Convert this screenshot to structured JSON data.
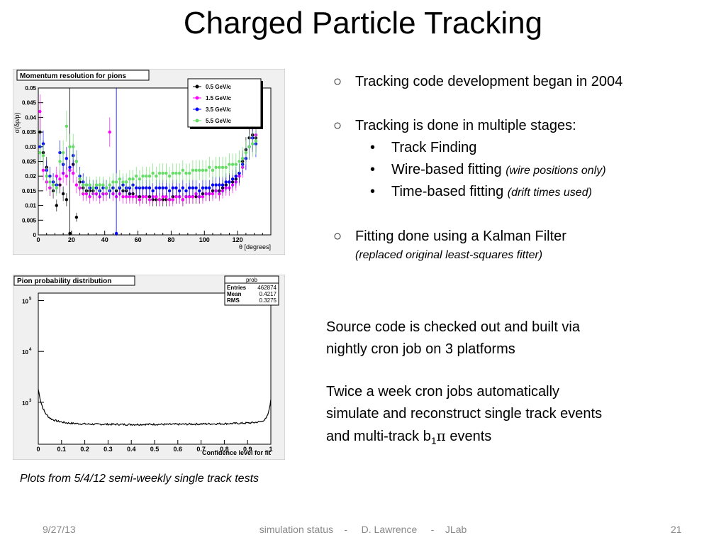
{
  "slide": {
    "title": "Charged Particle Tracking",
    "bullets": {
      "b1": "Tracking code development began in 2004",
      "b2": "Tracking is done in multiple stages:",
      "sub1": "Track Finding",
      "sub2": "Wire-based fitting",
      "sub2_note": "(wire positions only)",
      "sub3": "Time-based fitting",
      "sub3_note": "(drift times used)",
      "b3": "Fitting done using a Kalman Filter",
      "b3_note": "(replaced original least-squares fitter)"
    },
    "para1_line1": "Source code is checked out and built via",
    "para1_line2": "nightly cron job on 3 platforms",
    "para2_line1": "Twice a week cron jobs automatically",
    "para2_line2": "simulate and reconstruct single track events",
    "para2_line3_pre": "and multi-track b",
    "para2_line3_sub": "1",
    "para2_line3_pi": "π",
    "para2_line3_post": " events",
    "caption": "Plots from 5/4/12 semi-weekly single track tests",
    "footer": {
      "date": "9/27/13",
      "center": "simulation status    -     D. Lawrence     -    JLab",
      "page": "21"
    }
  },
  "chart_data": [
    {
      "type": "scatter",
      "title": "Momentum resolution for pions",
      "xlabel": "θ [degrees]",
      "ylabel": "σ(δp/p)",
      "xlim": [
        0,
        140
      ],
      "ylim": [
        0,
        0.05
      ],
      "xticks": [
        "0",
        "20",
        "40",
        "60",
        "80",
        "100",
        "120"
      ],
      "yticks": [
        "0",
        "0.005",
        "0.01",
        "0.015",
        "0.02",
        "0.025",
        "0.03",
        "0.035",
        "0.04",
        "0.045",
        "0.05"
      ],
      "legend_position": "top-right",
      "series": [
        {
          "name": "0.5 GeV/c",
          "color": "#000000",
          "x": [
            1,
            3,
            5,
            7,
            9,
            11,
            13,
            15,
            17,
            19,
            21,
            23,
            25,
            27,
            29,
            31,
            33,
            35,
            37,
            39,
            41,
            43,
            45,
            47,
            49,
            51,
            53,
            55,
            57,
            59,
            61,
            63,
            65,
            67,
            69,
            71,
            73,
            75,
            77,
            79,
            81,
            83,
            85,
            87,
            89,
            91,
            93,
            95,
            97,
            99,
            101,
            103,
            105,
            107,
            109,
            111,
            113,
            115,
            117,
            119,
            121,
            123,
            125,
            127,
            129,
            131
          ],
          "y": [
            0.035,
            0.028,
            0.023,
            0.016,
            0.015,
            0.01,
            0.017,
            0.014,
            0.012,
            0.0005,
            0.024,
            0.006,
            0.018,
            0.016,
            0.015,
            0.015,
            0.015,
            0.016,
            0.015,
            0.014,
            0.016,
            0.015,
            0.016,
            0.015,
            0.016,
            0.015,
            0.015,
            0.014,
            0.014,
            0.013,
            0.013,
            0.013,
            0.013,
            0.013,
            0.012,
            0.012,
            0.012,
            0.012,
            0.012,
            0.012,
            0.013,
            0.013,
            0.013,
            0.012,
            0.013,
            0.013,
            0.013,
            0.013,
            0.013,
            0.014,
            0.014,
            0.014,
            0.015,
            0.015,
            0.015,
            0.016,
            0.017,
            0.018,
            0.018,
            0.019,
            0.021,
            0.025,
            0.029,
            0.033,
            0.034,
            0.033
          ]
        },
        {
          "name": "1.5 GeV/c",
          "color": "#ff00ff",
          "x": [
            1,
            3,
            5,
            7,
            9,
            11,
            13,
            15,
            17,
            19,
            21,
            23,
            25,
            27,
            29,
            31,
            33,
            35,
            37,
            39,
            41,
            43,
            45,
            47,
            49,
            51,
            53,
            55,
            57,
            59,
            61,
            63,
            65,
            67,
            69,
            71,
            73,
            75,
            77,
            79,
            81,
            83,
            85,
            87,
            89,
            91,
            93,
            95,
            97,
            99,
            101,
            103,
            105,
            107,
            109,
            111,
            113,
            115,
            117,
            119,
            121,
            123,
            125,
            127,
            129,
            131
          ],
          "y": [
            0.042,
            0.022,
            0.018,
            0.016,
            0.018,
            0.02,
            0.019,
            0.021,
            0.02,
            0.022,
            0.021,
            0.017,
            0.016,
            0.014,
            0.014,
            0.013,
            0.014,
            0.014,
            0.013,
            0.014,
            0.014,
            0.035,
            0.014,
            0.013,
            0.014,
            0.013,
            0.013,
            0.013,
            0.013,
            0.013,
            0.012,
            0.013,
            0.013,
            0.012,
            0.013,
            0.013,
            0.012,
            0.013,
            0.013,
            0.012,
            0.012,
            0.013,
            0.013,
            0.012,
            0.013,
            0.013,
            0.013,
            0.014,
            0.013,
            0.013,
            0.014,
            0.014,
            0.014,
            0.015,
            0.014,
            0.015,
            0.016,
            0.016,
            0.017,
            0.018,
            0.02,
            0.023,
            0.026,
            0.03,
            0.033,
            0.034
          ]
        },
        {
          "name": "3.5 GeV/c",
          "color": "#0000ff",
          "x": [
            1,
            3,
            5,
            7,
            9,
            11,
            13,
            15,
            17,
            19,
            21,
            23,
            25,
            27,
            29,
            31,
            33,
            35,
            37,
            39,
            41,
            43,
            45,
            47,
            49,
            51,
            53,
            55,
            57,
            59,
            61,
            63,
            65,
            67,
            69,
            71,
            73,
            75,
            77,
            79,
            81,
            83,
            85,
            87,
            89,
            91,
            93,
            95,
            97,
            99,
            101,
            103,
            105,
            107,
            109,
            111,
            113,
            115,
            117,
            119,
            121,
            123,
            125,
            127,
            129,
            131
          ],
          "y": [
            0.03,
            0.031,
            0.022,
            0.02,
            0.018,
            0.017,
            0.028,
            0.024,
            0.026,
            0.023,
            0.027,
            0.025,
            0.02,
            0.018,
            0.017,
            0.016,
            0.016,
            0.016,
            0.015,
            0.016,
            0.016,
            0.015,
            0.016,
            0.0005,
            0.016,
            0.017,
            0.016,
            0.016,
            0.017,
            0.016,
            0.016,
            0.016,
            0.016,
            0.016,
            0.015,
            0.016,
            0.016,
            0.016,
            0.016,
            0.015,
            0.016,
            0.016,
            0.015,
            0.016,
            0.015,
            0.016,
            0.016,
            0.016,
            0.015,
            0.016,
            0.016,
            0.016,
            0.017,
            0.017,
            0.017,
            0.017,
            0.018,
            0.018,
            0.019,
            0.02,
            0.021,
            0.024,
            0.026,
            0.03,
            0.033,
            0.031
          ]
        },
        {
          "name": "5.5 GeV/c",
          "color": "#66dd66",
          "x": [
            1,
            3,
            5,
            7,
            9,
            11,
            13,
            15,
            17,
            19,
            21,
            23,
            25,
            27,
            29,
            31,
            33,
            35,
            37,
            39,
            41,
            43,
            45,
            47,
            49,
            51,
            53,
            55,
            57,
            59,
            61,
            63,
            65,
            67,
            69,
            71,
            73,
            75,
            77,
            79,
            81,
            83,
            85,
            87,
            89,
            91,
            93,
            95,
            97,
            99,
            101,
            103,
            105,
            107,
            109,
            111,
            113,
            115,
            117,
            119,
            121,
            123,
            125,
            127,
            129,
            131
          ],
          "y": [
            0.028,
            0.027,
            0.02,
            0.018,
            0.017,
            0.016,
            0.025,
            0.028,
            0.037,
            0.03,
            0.03,
            0.025,
            0.019,
            0.017,
            0.017,
            0.017,
            0.016,
            0.017,
            0.017,
            0.017,
            0.016,
            0.017,
            0.018,
            0.018,
            0.019,
            0.018,
            0.018,
            0.019,
            0.019,
            0.02,
            0.019,
            0.02,
            0.02,
            0.02,
            0.021,
            0.02,
            0.021,
            0.021,
            0.021,
            0.02,
            0.021,
            0.021,
            0.021,
            0.022,
            0.021,
            0.021,
            0.022,
            0.022,
            0.022,
            0.022,
            0.022,
            0.023,
            0.022,
            0.023,
            0.023,
            0.023,
            0.023,
            0.024,
            0.024,
            0.024,
            0.025,
            0.026,
            0.028,
            0.03,
            0.031,
            0.032
          ]
        }
      ]
    },
    {
      "type": "line",
      "title": "Pion probability distribution",
      "xlabel": "Confidence level for fit",
      "ylabel": "",
      "log_y": true,
      "xlim": [
        0,
        1
      ],
      "ylim": [
        150,
        140000
      ],
      "xticks": [
        "0",
        "0.1",
        "0.2",
        "0.3",
        "0.4",
        "0.5",
        "0.6",
        "0.7",
        "0.8",
        "0.9",
        "1"
      ],
      "yticks": [
        {
          "base": "10",
          "exp": "3",
          "value": 1000
        },
        {
          "base": "10",
          "exp": "4",
          "value": 10000
        },
        {
          "base": "10",
          "exp": "5",
          "value": 100000
        }
      ],
      "stats": {
        "name": "prob",
        "entries_label": "Entries",
        "entries": "462874",
        "mean_label": "Mean",
        "mean": "0.4217",
        "rms_label": "RMS",
        "rms": "0.3275"
      },
      "series": [
        {
          "name": "prob",
          "color": "#000000",
          "x": [
            0.0,
            0.01,
            0.02,
            0.03,
            0.04,
            0.05,
            0.06,
            0.08,
            0.1,
            0.12,
            0.15,
            0.2,
            0.25,
            0.3,
            0.35,
            0.4,
            0.45,
            0.5,
            0.55,
            0.6,
            0.65,
            0.7,
            0.75,
            0.8,
            0.85,
            0.9,
            0.93,
            0.96,
            0.98,
            0.99,
            1.0
          ],
          "y": [
            1800,
            1050,
            760,
            620,
            540,
            490,
            460,
            430,
            410,
            395,
            385,
            375,
            370,
            370,
            368,
            366,
            368,
            370,
            368,
            370,
            372,
            375,
            378,
            380,
            385,
            392,
            400,
            420,
            480,
            620,
            1100
          ]
        }
      ]
    }
  ]
}
